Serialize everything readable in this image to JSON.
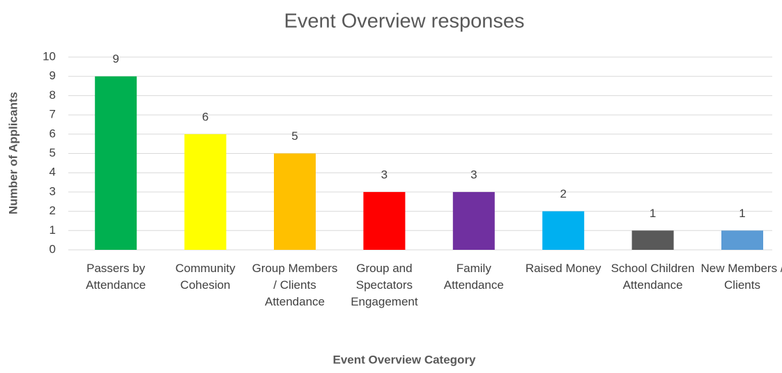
{
  "chart_data": {
    "type": "bar",
    "title": "Event Overview responses",
    "x_label": "Event Overview Category",
    "y_label": "Number of Applicants",
    "categories": [
      "Passers by Attendance",
      "Community Cohesion",
      "Group Members / Clients Attendance",
      "Group and Spectators Engagement",
      "Family Attendance",
      "Raised Money",
      "School Children Attendance",
      "New Members / Clients"
    ],
    "values": [
      9,
      6,
      5,
      3,
      3,
      2,
      1,
      1
    ],
    "colors": [
      "#00b050",
      "#ffff00",
      "#ffc000",
      "#ff0000",
      "#7030a0",
      "#00b0f0",
      "#595959",
      "#5b9bd5"
    ],
    "ylim": [
      0,
      10
    ],
    "yticks": [
      0,
      1,
      2,
      3,
      4,
      5,
      6,
      7,
      8,
      9,
      10
    ],
    "grid": true
  }
}
